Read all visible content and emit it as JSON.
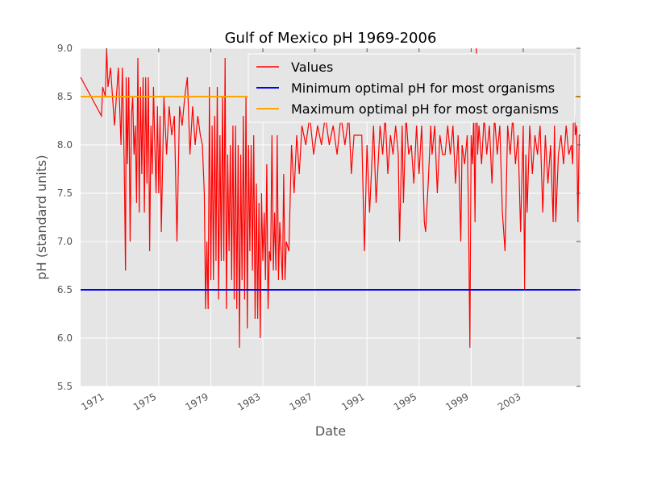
{
  "chart_data": {
    "type": "line",
    "title": "Gulf of Mexico pH 1969-2006",
    "xlabel": "Date",
    "ylabel": "pH (standard units)",
    "xlim": [
      1969.0,
      2007.4
    ],
    "ylim": [
      5.5,
      9.0
    ],
    "x_ticks": [
      1971,
      1975,
      1979,
      1983,
      1987,
      1991,
      1995,
      1999,
      2003
    ],
    "x_tick_labels": [
      "1971",
      "1975",
      "1979",
      "1983",
      "1987",
      "1991",
      "1995",
      "1999",
      "2003"
    ],
    "y_ticks": [
      5.5,
      6.0,
      6.5,
      7.0,
      7.5,
      8.0,
      8.5,
      9.0
    ],
    "y_tick_labels": [
      "5.5",
      "6.0",
      "6.5",
      "7.0",
      "7.5",
      "8.0",
      "8.5",
      "9.0"
    ],
    "grid": true,
    "legend_position": "top-right",
    "series": [
      {
        "name": "Values",
        "color": "#ff0000",
        "points": [
          [
            1969.0,
            8.7
          ],
          [
            1970.6,
            8.3
          ],
          [
            1970.7,
            8.6
          ],
          [
            1970.9,
            8.5
          ],
          [
            1971.0,
            9.0
          ],
          [
            1971.1,
            8.6
          ],
          [
            1971.3,
            8.8
          ],
          [
            1971.6,
            8.2
          ],
          [
            1971.9,
            8.8
          ],
          [
            1972.1,
            8.0
          ],
          [
            1972.2,
            8.8
          ],
          [
            1972.35,
            7.8
          ],
          [
            1972.45,
            6.7
          ],
          [
            1972.5,
            8.7
          ],
          [
            1972.6,
            7.8
          ],
          [
            1972.7,
            8.7
          ],
          [
            1972.8,
            7.0
          ],
          [
            1972.9,
            8.3
          ],
          [
            1973.0,
            8.5
          ],
          [
            1973.1,
            7.9
          ],
          [
            1973.2,
            8.2
          ],
          [
            1973.3,
            7.4
          ],
          [
            1973.4,
            8.9
          ],
          [
            1973.5,
            7.3
          ],
          [
            1973.6,
            8.6
          ],
          [
            1973.7,
            7.7
          ],
          [
            1973.8,
            8.7
          ],
          [
            1973.9,
            7.3
          ],
          [
            1974.0,
            8.7
          ],
          [
            1974.1,
            7.6
          ],
          [
            1974.2,
            8.7
          ],
          [
            1974.3,
            6.9
          ],
          [
            1974.4,
            8.2
          ],
          [
            1974.5,
            7.7
          ],
          [
            1974.6,
            8.6
          ],
          [
            1974.7,
            8.0
          ],
          [
            1974.8,
            7.5
          ],
          [
            1974.9,
            8.4
          ],
          [
            1975.0,
            7.5
          ],
          [
            1975.1,
            8.3
          ],
          [
            1975.2,
            7.1
          ],
          [
            1975.4,
            8.5
          ],
          [
            1975.6,
            7.9
          ],
          [
            1975.8,
            8.4
          ],
          [
            1976.0,
            8.1
          ],
          [
            1976.2,
            8.3
          ],
          [
            1976.4,
            7.0
          ],
          [
            1976.6,
            8.4
          ],
          [
            1976.8,
            8.2
          ],
          [
            1977.0,
            8.5
          ],
          [
            1977.2,
            8.7
          ],
          [
            1977.4,
            7.9
          ],
          [
            1977.6,
            8.4
          ],
          [
            1977.8,
            8.0
          ],
          [
            1978.0,
            8.3
          ],
          [
            1978.2,
            8.1
          ],
          [
            1978.35,
            8.0
          ],
          [
            1978.5,
            7.5
          ],
          [
            1978.6,
            6.3
          ],
          [
            1978.7,
            7.0
          ],
          [
            1978.8,
            6.3
          ],
          [
            1978.9,
            8.6
          ],
          [
            1979.0,
            6.6
          ],
          [
            1979.1,
            8.2
          ],
          [
            1979.2,
            6.6
          ],
          [
            1979.3,
            8.3
          ],
          [
            1979.4,
            6.8
          ],
          [
            1979.5,
            8.6
          ],
          [
            1979.6,
            6.4
          ],
          [
            1979.7,
            8.1
          ],
          [
            1979.8,
            6.8
          ],
          [
            1979.9,
            8.5
          ],
          [
            1980.0,
            6.8
          ],
          [
            1980.1,
            8.9
          ],
          [
            1980.2,
            6.3
          ],
          [
            1980.3,
            7.9
          ],
          [
            1980.4,
            6.9
          ],
          [
            1980.5,
            8.0
          ],
          [
            1980.6,
            6.6
          ],
          [
            1980.7,
            8.2
          ],
          [
            1980.8,
            6.4
          ],
          [
            1980.9,
            8.2
          ],
          [
            1981.0,
            6.3
          ],
          [
            1981.1,
            8.0
          ],
          [
            1981.2,
            5.9
          ],
          [
            1981.3,
            7.9
          ],
          [
            1981.4,
            6.6
          ],
          [
            1981.5,
            8.3
          ],
          [
            1981.6,
            6.4
          ],
          [
            1981.7,
            8.5
          ],
          [
            1981.8,
            6.1
          ],
          [
            1981.9,
            8.0
          ],
          [
            1982.0,
            6.9
          ],
          [
            1982.1,
            8.0
          ],
          [
            1982.2,
            6.7
          ],
          [
            1982.3,
            8.1
          ],
          [
            1982.4,
            6.2
          ],
          [
            1982.5,
            7.6
          ],
          [
            1982.6,
            6.2
          ],
          [
            1982.7,
            7.4
          ],
          [
            1982.8,
            6.0
          ],
          [
            1982.9,
            7.5
          ],
          [
            1983.0,
            6.8
          ],
          [
            1983.1,
            7.3
          ],
          [
            1983.2,
            6.6
          ],
          [
            1983.3,
            7.8
          ],
          [
            1983.4,
            6.3
          ],
          [
            1983.5,
            6.9
          ],
          [
            1983.6,
            6.8
          ],
          [
            1983.7,
            8.1
          ],
          [
            1983.8,
            6.7
          ],
          [
            1983.9,
            7.3
          ],
          [
            1984.0,
            6.7
          ],
          [
            1984.1,
            8.1
          ],
          [
            1984.2,
            6.6
          ],
          [
            1984.3,
            7.2
          ],
          [
            1984.4,
            6.9
          ],
          [
            1984.5,
            6.6
          ],
          [
            1984.6,
            7.7
          ],
          [
            1984.7,
            6.6
          ],
          [
            1984.8,
            7.0
          ],
          [
            1985.0,
            6.9
          ],
          [
            1985.2,
            8.0
          ],
          [
            1985.4,
            7.5
          ],
          [
            1985.6,
            8.1
          ],
          [
            1985.8,
            7.7
          ],
          [
            1986.0,
            8.2
          ],
          [
            1986.3,
            8.0
          ],
          [
            1986.6,
            8.3
          ],
          [
            1986.9,
            7.9
          ],
          [
            1987.2,
            8.2
          ],
          [
            1987.5,
            8.0
          ],
          [
            1987.8,
            8.3
          ],
          [
            1988.1,
            8.0
          ],
          [
            1988.4,
            8.2
          ],
          [
            1988.7,
            7.9
          ],
          [
            1989.0,
            8.3
          ],
          [
            1989.3,
            8.0
          ],
          [
            1989.6,
            8.3
          ],
          [
            1989.8,
            7.7
          ],
          [
            1990.0,
            8.1
          ],
          [
            1990.3,
            8.1
          ],
          [
            1990.6,
            8.1
          ],
          [
            1990.8,
            6.9
          ],
          [
            1991.0,
            8.0
          ],
          [
            1991.2,
            7.3
          ],
          [
            1991.5,
            8.2
          ],
          [
            1991.7,
            7.4
          ],
          [
            1992.0,
            8.2
          ],
          [
            1992.2,
            7.9
          ],
          [
            1992.4,
            8.3
          ],
          [
            1992.6,
            7.7
          ],
          [
            1992.8,
            8.1
          ],
          [
            1993.0,
            7.9
          ],
          [
            1993.2,
            8.2
          ],
          [
            1993.4,
            7.9
          ],
          [
            1993.5,
            7.0
          ],
          [
            1993.7,
            8.2
          ],
          [
            1993.8,
            7.4
          ],
          [
            1994.0,
            8.3
          ],
          [
            1994.2,
            7.9
          ],
          [
            1994.4,
            8.0
          ],
          [
            1994.6,
            7.6
          ],
          [
            1994.8,
            8.2
          ],
          [
            1995.0,
            7.7
          ],
          [
            1995.2,
            8.2
          ],
          [
            1995.4,
            7.2
          ],
          [
            1995.5,
            7.1
          ],
          [
            1995.7,
            7.6
          ],
          [
            1995.9,
            8.2
          ],
          [
            1996.0,
            7.9
          ],
          [
            1996.2,
            8.2
          ],
          [
            1996.4,
            7.5
          ],
          [
            1996.6,
            8.1
          ],
          [
            1996.8,
            7.9
          ],
          [
            1997.0,
            7.9
          ],
          [
            1997.2,
            8.2
          ],
          [
            1997.4,
            7.9
          ],
          [
            1997.6,
            8.2
          ],
          [
            1997.8,
            7.6
          ],
          [
            1998.0,
            8.1
          ],
          [
            1998.2,
            7.0
          ],
          [
            1998.3,
            8.0
          ],
          [
            1998.5,
            7.8
          ],
          [
            1998.7,
            8.1
          ],
          [
            1998.8,
            7.3
          ],
          [
            1998.9,
            5.9
          ],
          [
            1999.0,
            8.1
          ],
          [
            1999.1,
            7.8
          ],
          [
            1999.2,
            8.3
          ],
          [
            1999.3,
            7.2
          ],
          [
            1999.4,
            9.0
          ],
          [
            1999.5,
            7.9
          ],
          [
            1999.6,
            8.2
          ],
          [
            1999.8,
            7.8
          ],
          [
            2000.0,
            8.3
          ],
          [
            2000.2,
            7.9
          ],
          [
            2000.4,
            8.2
          ],
          [
            2000.6,
            7.6
          ],
          [
            2000.8,
            8.3
          ],
          [
            2001.0,
            7.9
          ],
          [
            2001.2,
            8.2
          ],
          [
            2001.4,
            7.3
          ],
          [
            2001.6,
            6.9
          ],
          [
            2001.8,
            8.2
          ],
          [
            2002.0,
            7.9
          ],
          [
            2002.2,
            8.3
          ],
          [
            2002.4,
            7.8
          ],
          [
            2002.6,
            8.1
          ],
          [
            2002.8,
            7.1
          ],
          [
            2003.0,
            8.2
          ],
          [
            2003.1,
            6.5
          ],
          [
            2003.2,
            7.9
          ],
          [
            2003.3,
            7.3
          ],
          [
            2003.5,
            8.2
          ],
          [
            2003.7,
            7.7
          ],
          [
            2003.9,
            8.1
          ],
          [
            2004.1,
            7.9
          ],
          [
            2004.3,
            8.2
          ],
          [
            2004.5,
            7.3
          ],
          [
            2004.7,
            8.1
          ],
          [
            2004.9,
            7.6
          ],
          [
            2005.1,
            8.0
          ],
          [
            2005.3,
            7.2
          ],
          [
            2005.4,
            8.2
          ],
          [
            2005.5,
            7.2
          ],
          [
            2005.7,
            7.9
          ],
          [
            2005.9,
            8.1
          ],
          [
            2006.1,
            7.8
          ],
          [
            2006.3,
            8.2
          ],
          [
            2006.5,
            7.9
          ],
          [
            2006.7,
            8.0
          ],
          [
            2006.8,
            7.8
          ],
          [
            2006.9,
            8.7
          ],
          [
            2007.0,
            8.1
          ],
          [
            2007.1,
            8.2
          ],
          [
            2007.2,
            7.2
          ],
          [
            2007.3,
            8.1
          ],
          [
            2007.4,
            8.1
          ]
        ]
      },
      {
        "name": "Minimum optimal pH for most organisms",
        "color": "#0000ff",
        "x": [
          1969.0,
          2007.4
        ],
        "y": [
          6.5,
          6.5
        ]
      },
      {
        "name": "Maximum optimal pH for most organisms",
        "color": "#ffa500",
        "x": [
          1969.0,
          2007.4
        ],
        "y": [
          8.5,
          8.5
        ]
      }
    ]
  },
  "colors": {
    "plot_background": "#e5e5e5",
    "grid": "#ffffff",
    "legend_background": "#e5e5e5",
    "legend_border": "#ffffff"
  }
}
